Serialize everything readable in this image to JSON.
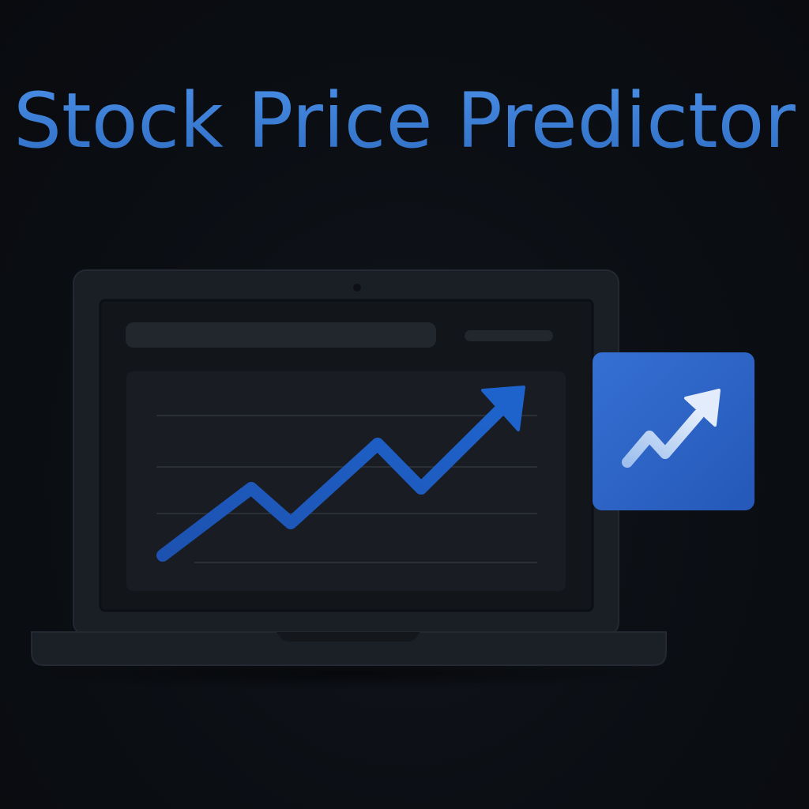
{
  "title": "Stock Price Predictor",
  "colors": {
    "background": "#0a0d11",
    "title": "#3a7bd5",
    "laptop_body": "#1b1f26",
    "laptop_screen": "#121519",
    "chart_line": "#1f5fc4",
    "badge": "#2d63c6",
    "badge_arrow": "#cfe0f7"
  },
  "icons": {
    "laptop": "laptop-icon",
    "trend_badge": "trending-up-icon"
  }
}
